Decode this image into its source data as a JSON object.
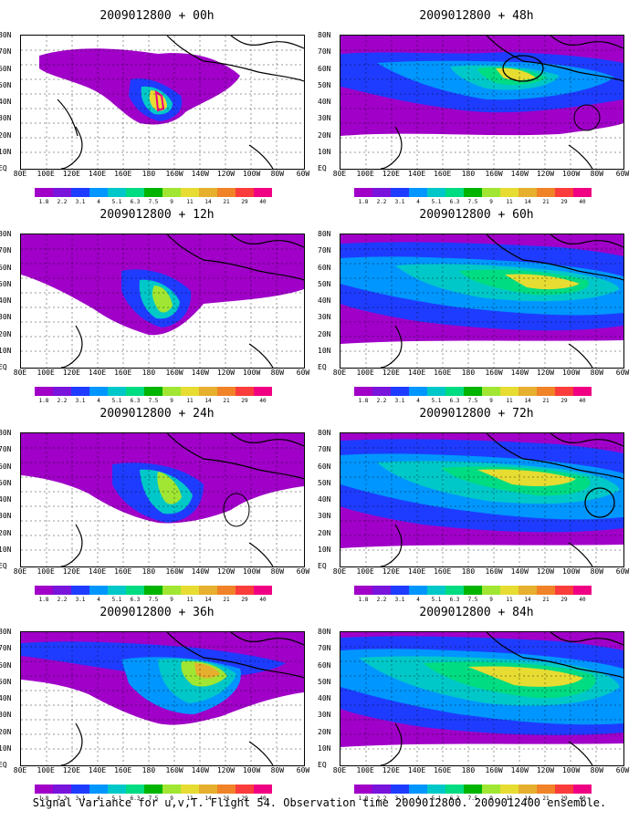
{
  "panels": [
    {
      "title": "2009012800 + 00h"
    },
    {
      "title": "2009012800 + 48h"
    },
    {
      "title": "2009012800 + 12h"
    },
    {
      "title": "2009012800 + 60h"
    },
    {
      "title": "2009012800 + 24h"
    },
    {
      "title": "2009012800 + 72h"
    },
    {
      "title": "2009012800 + 36h"
    },
    {
      "title": "2009012800 + 84h"
    }
  ],
  "lat_labels": [
    "80N",
    "70N",
    "60N",
    "50N",
    "40N",
    "30N",
    "20N",
    "10N",
    "EQ"
  ],
  "lon_labels": [
    "80E",
    "100E",
    "120E",
    "140E",
    "160E",
    "180",
    "160W",
    "140W",
    "120W",
    "100W",
    "80W",
    "60W"
  ],
  "colorbar": {
    "labels": [
      "1.8",
      "2.2",
      "3.1",
      "4",
      "5.1",
      "6.3",
      "7.5",
      "9",
      "11",
      "14",
      "21",
      "29",
      "40"
    ],
    "colors": [
      "#a000c8",
      "#7814dc",
      "#1e3cff",
      "#0096ff",
      "#00c8c8",
      "#00dc82",
      "#00b400",
      "#a0e632",
      "#e6dc32",
      "#e6af2d",
      "#f08228",
      "#fa3c3c",
      "#f00082"
    ]
  },
  "caption": "Signal Variance for u,v,T. Flight 54. Observation time 2009012800. 2009012400 ensemble."
}
